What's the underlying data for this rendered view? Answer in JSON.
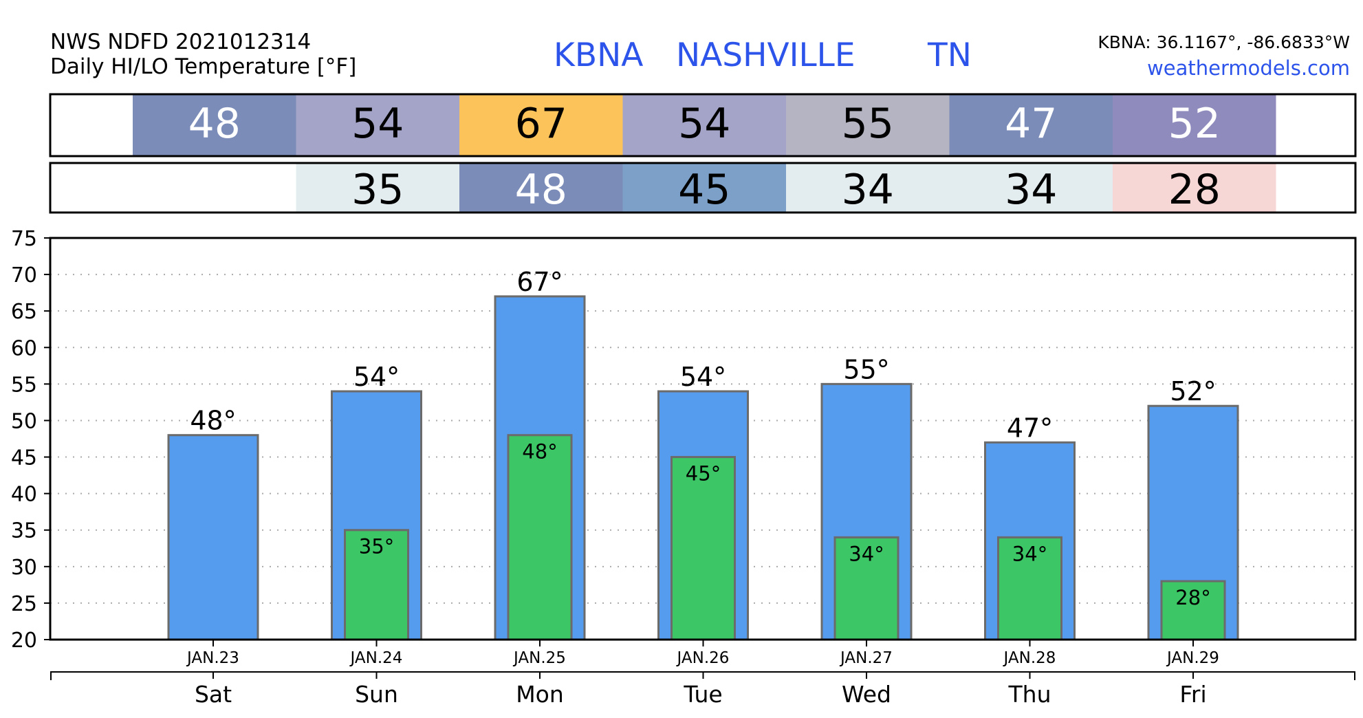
{
  "header": {
    "source_line": "NWS NDFD 2021012314",
    "subtitle": "Daily HI/LO Temperature [°F]",
    "station_code": "KBNA",
    "station_name": "NASHVILLE",
    "station_state": "TN",
    "coords": "KBNA: 36.1167°, -86.6833°W",
    "website": "weathermodels.com"
  },
  "hi_strip": [
    {
      "value": "48",
      "bg": "#7b8cb8",
      "fg": "#ffffff"
    },
    {
      "value": "54",
      "bg": "#a4a4c8",
      "fg": "#000000"
    },
    {
      "value": "67",
      "bg": "#fbc35a",
      "fg": "#000000"
    },
    {
      "value": "54",
      "bg": "#a4a4c8",
      "fg": "#000000"
    },
    {
      "value": "55",
      "bg": "#b4b4c3",
      "fg": "#000000"
    },
    {
      "value": "47",
      "bg": "#7b8cb8",
      "fg": "#ffffff"
    },
    {
      "value": "52",
      "bg": "#8f8cbd",
      "fg": "#ffffff"
    }
  ],
  "lo_strip": [
    null,
    {
      "value": "35",
      "bg": "#e3ecee",
      "fg": "#000000"
    },
    {
      "value": "48",
      "bg": "#7b8cb8",
      "fg": "#ffffff"
    },
    {
      "value": "45",
      "bg": "#7ca0c8",
      "fg": "#000000"
    },
    {
      "value": "34",
      "bg": "#e3ecee",
      "fg": "#000000"
    },
    {
      "value": "34",
      "bg": "#e3ecee",
      "fg": "#000000"
    },
    {
      "value": "28",
      "bg": "#f7d6d6",
      "fg": "#000000"
    }
  ],
  "colors": {
    "hi_bar": "#559bee",
    "lo_bar": "#3cc666",
    "bar_edge": "#6b6b6b",
    "grid": "#aaaaaa",
    "title_blue": "#2d54ea"
  },
  "chart_data": {
    "type": "bar",
    "title": "KBNA NASHVILLE TN",
    "subtitle": "Daily HI/LO Temperature [°F]",
    "categories": [
      "JAN.23",
      "JAN.24",
      "JAN.25",
      "JAN.26",
      "JAN.27",
      "JAN.28",
      "JAN.29"
    ],
    "weekdays": [
      "Sat",
      "Sun",
      "Mon",
      "Tue",
      "Wed",
      "Thu",
      "Fri"
    ],
    "series": [
      {
        "name": "HI",
        "values": [
          48,
          54,
          67,
          54,
          55,
          47,
          52
        ]
      },
      {
        "name": "LO",
        "values": [
          null,
          35,
          48,
          45,
          34,
          34,
          28
        ]
      }
    ],
    "hi_labels": [
      "48°",
      "54°",
      "67°",
      "54°",
      "55°",
      "47°",
      "52°"
    ],
    "lo_labels": [
      null,
      "35°",
      "48°",
      "45°",
      "34°",
      "34°",
      "28°"
    ],
    "ylim": [
      20,
      75
    ],
    "yticks": [
      20,
      25,
      30,
      35,
      40,
      45,
      50,
      55,
      60,
      65,
      70,
      75
    ],
    "grid": true
  }
}
